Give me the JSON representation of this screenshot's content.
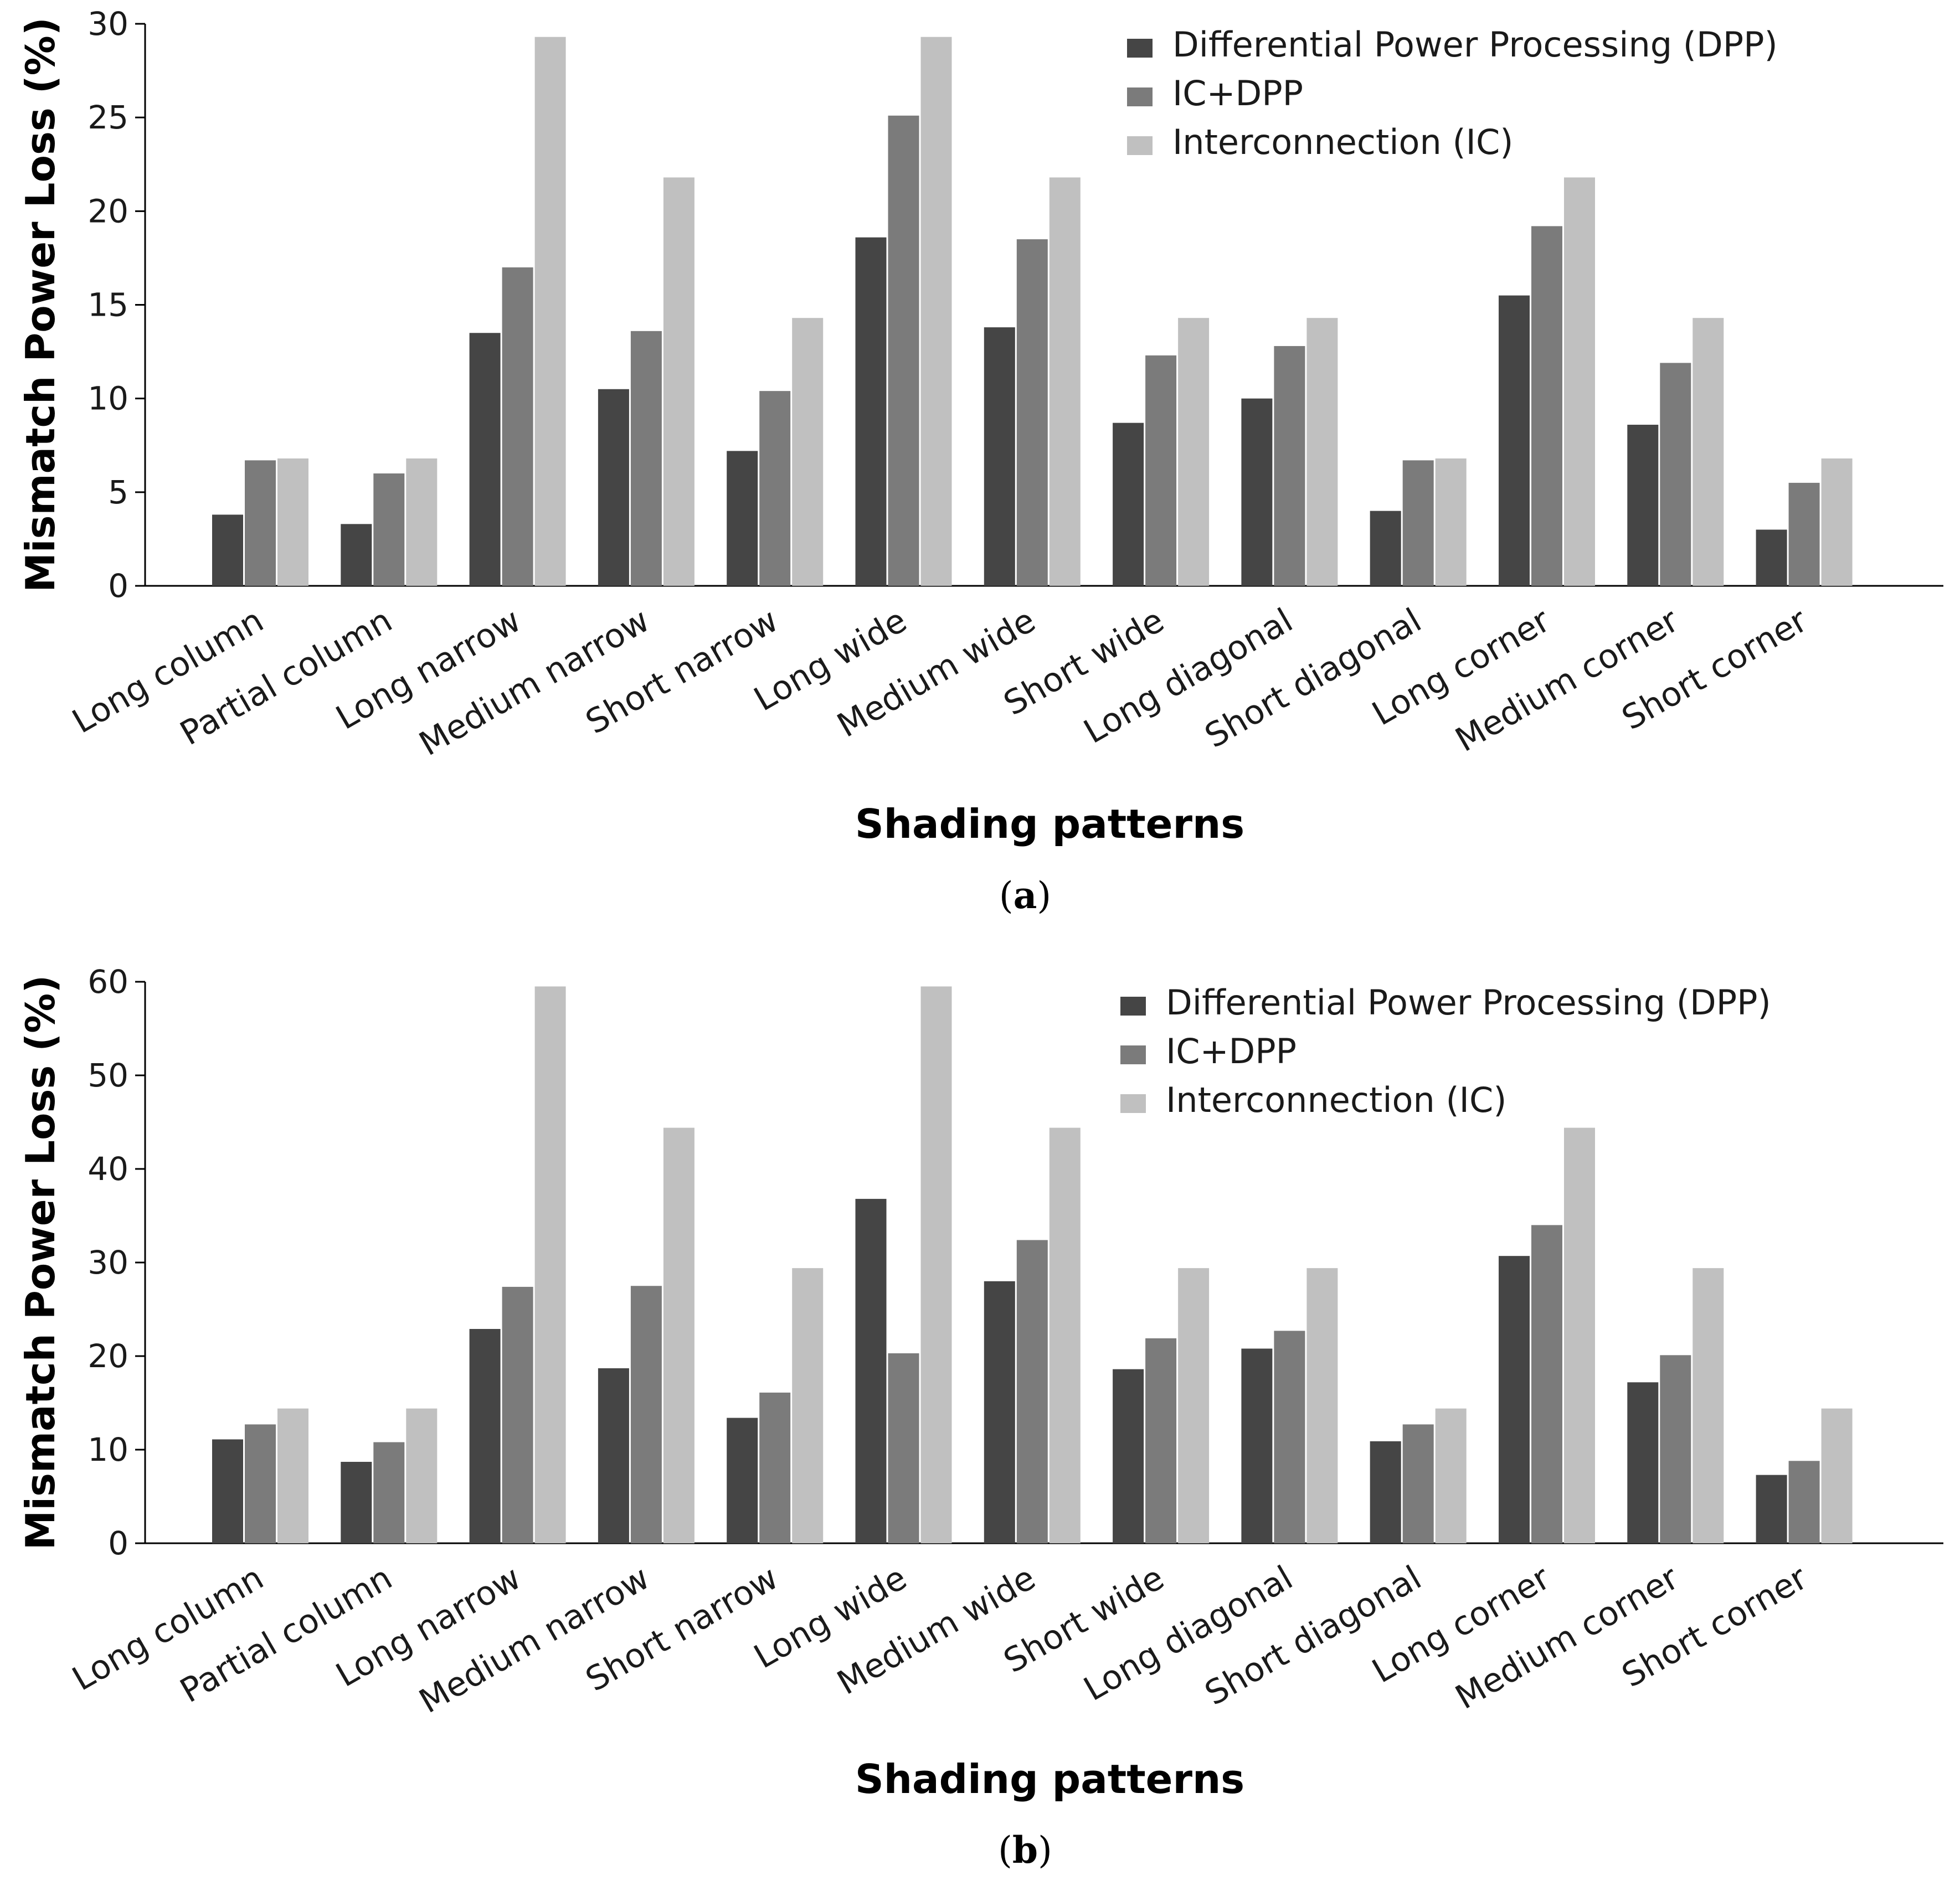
{
  "chart_data": [
    {
      "type": "bar",
      "panel": "a",
      "caption_open": "(",
      "caption_letter": "a",
      "caption_close": ")",
      "xlabel": "Shading patterns",
      "ylabel": "Mismatch Power Loss (%)",
      "ylim": [
        0,
        30
      ],
      "yticks": [
        0,
        5,
        10,
        15,
        20,
        25,
        30
      ],
      "legend_position": "top-right",
      "categories": [
        "Long column",
        "Partial column",
        "Long narrow",
        "Medium narrow",
        "Short narrow",
        "Long wide",
        "Medium wide",
        "Short wide",
        "Long diagonal",
        "Short diagonal",
        "Long corner",
        "Medium corner",
        "Short corner"
      ],
      "series": [
        {
          "name": "Differential Power Processing (DPP)",
          "color": "#454545",
          "values": [
            3.8,
            3.3,
            13.5,
            10.5,
            7.2,
            18.6,
            13.8,
            8.7,
            10.0,
            4.0,
            15.5,
            8.6,
            3.0
          ]
        },
        {
          "name": "IC+DPP",
          "color": "#7b7b7b",
          "values": [
            6.7,
            6.0,
            17.0,
            13.6,
            10.4,
            25.1,
            18.5,
            12.3,
            12.8,
            6.7,
            19.2,
            11.9,
            5.5
          ]
        },
        {
          "name": "Interconnection (IC)",
          "color": "#c0c0c0",
          "values": [
            6.8,
            6.8,
            29.3,
            21.8,
            14.3,
            29.3,
            21.8,
            14.3,
            14.3,
            6.8,
            21.8,
            14.3,
            6.8
          ]
        }
      ]
    },
    {
      "type": "bar",
      "panel": "b",
      "caption_open": "(",
      "caption_letter": "b",
      "caption_close": ")",
      "xlabel": "Shading patterns",
      "ylabel": "Mismatch Power Loss (%)",
      "ylim": [
        0,
        60
      ],
      "yticks": [
        0,
        10,
        20,
        30,
        40,
        50,
        60
      ],
      "legend_position": "top-right",
      "categories": [
        "Long column",
        "Partial column",
        "Long narrow",
        "Medium narrow",
        "Short narrow",
        "Long wide",
        "Medium wide",
        "Short wide",
        "Long diagonal",
        "Short diagonal",
        "Long corner",
        "Medium corner",
        "Short corner"
      ],
      "series": [
        {
          "name": "Differential Power Processing (DPP)",
          "color": "#454545",
          "values": [
            11.1,
            8.7,
            22.9,
            18.7,
            13.4,
            36.8,
            28.0,
            18.6,
            20.8,
            10.9,
            30.7,
            17.2,
            7.3
          ]
        },
        {
          "name": "IC+DPP",
          "color": "#7b7b7b",
          "values": [
            12.7,
            10.8,
            27.4,
            27.5,
            16.1,
            20.3,
            32.4,
            21.9,
            22.7,
            12.7,
            34.0,
            20.1,
            8.8
          ]
        },
        {
          "name": "Interconnection (IC)",
          "color": "#c0c0c0",
          "values": [
            14.4,
            14.4,
            59.5,
            44.4,
            29.4,
            59.5,
            44.4,
            29.4,
            29.4,
            14.4,
            44.4,
            29.4,
            14.4
          ]
        }
      ]
    }
  ]
}
